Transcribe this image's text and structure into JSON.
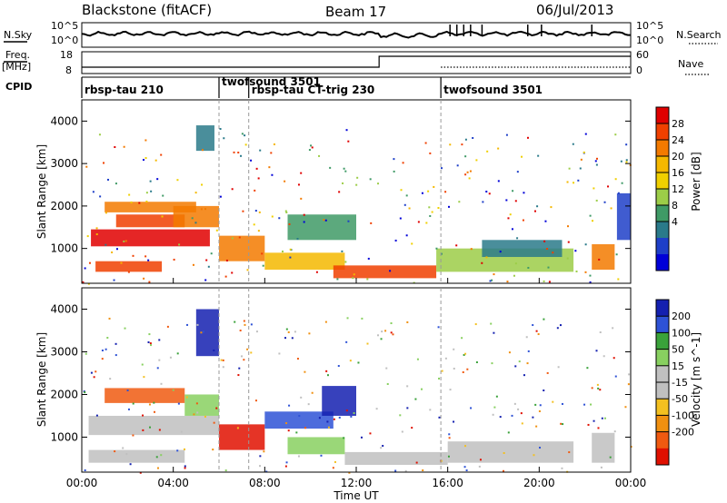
{
  "header": {
    "station": "Blackstone (fitACF)",
    "beam": "Beam 17",
    "date": "06/Jul/2013"
  },
  "top_panels": {
    "nsky": {
      "label": "N.Sky",
      "ticks": [
        "10^5",
        "10^0"
      ]
    },
    "nsearch": {
      "label": "N.Search",
      "ticks": [
        "10^5",
        "10^0"
      ]
    },
    "freq": {
      "label_line1": "Freq.",
      "label_line2": "[MHz]",
      "ticks": [
        "18",
        "8"
      ]
    },
    "nave": {
      "label": "Nave",
      "ticks": [
        "60",
        "0"
      ]
    },
    "cpid": {
      "label": "CPID"
    },
    "modes": [
      {
        "name": "rbsp-tau 210",
        "start": 0.0
      },
      {
        "name": "twofsound 3501",
        "start": 6.0
      },
      {
        "name": "rbsp-tau CT-trig 230",
        "start": 7.3
      },
      {
        "name": "twofsound 3501",
        "start": 15.7
      }
    ],
    "mode_boundaries": [
      6.0,
      7.3,
      15.7
    ]
  },
  "chart_data": {
    "type": "heatmap",
    "x_range_hours": [
      0,
      24
    ],
    "x_ticks": [
      "00:00",
      "04:00",
      "08:00",
      "12:00",
      "16:00",
      "20:00",
      "00:00"
    ],
    "x_tick_hours": [
      0,
      4,
      8,
      12,
      16,
      20,
      24
    ],
    "xlabel": "Time UT",
    "ylim_km": [
      180,
      4500
    ],
    "y_ticks": [
      1000,
      2000,
      3000,
      4000
    ],
    "ylabel": "Slant Range [km]",
    "power_panel": {
      "colorbar_label": "Power [dB]",
      "colorbar_ticks": [
        "28",
        "24",
        "20",
        "16",
        "12",
        "8",
        "4"
      ],
      "colorbar_colors": [
        "#e00000",
        "#f04000",
        "#f37a00",
        "#f5b800",
        "#f0d000",
        "#9ccd48",
        "#3f9a66",
        "#2a7a8a",
        "#1e3fc8",
        "#0000d8"
      ],
      "regions": [
        {
          "t": [
            0.4,
            5.6
          ],
          "r": [
            1050,
            1450
          ],
          "c": 0
        },
        {
          "t": [
            0.6,
            3.5
          ],
          "r": [
            450,
            700
          ],
          "c": 1
        },
        {
          "t": [
            1.0,
            5.0
          ],
          "r": [
            1850,
            2100
          ],
          "c": 2
        },
        {
          "t": [
            1.5,
            4.5
          ],
          "r": [
            1500,
            1800
          ],
          "c": 1
        },
        {
          "t": [
            4.0,
            6.0
          ],
          "r": [
            1500,
            2000
          ],
          "c": 2
        },
        {
          "t": [
            5.0,
            5.8
          ],
          "r": [
            3300,
            3900
          ],
          "c": 7
        },
        {
          "t": [
            6.0,
            8.0
          ],
          "r": [
            700,
            1300
          ],
          "c": 2
        },
        {
          "t": [
            8.0,
            11.5
          ],
          "r": [
            500,
            900
          ],
          "c": 3
        },
        {
          "t": [
            9.0,
            12.0
          ],
          "r": [
            1200,
            1800
          ],
          "c": 6
        },
        {
          "t": [
            11.0,
            15.5
          ],
          "r": [
            300,
            600
          ],
          "c": 1
        },
        {
          "t": [
            15.5,
            21.5
          ],
          "r": [
            450,
            1000
          ],
          "c": 5
        },
        {
          "t": [
            17.5,
            21.0
          ],
          "r": [
            800,
            1200
          ],
          "c": 7
        },
        {
          "t": [
            22.3,
            23.3
          ],
          "r": [
            500,
            1100
          ],
          "c": 2
        },
        {
          "t": [
            23.4,
            24.0
          ],
          "r": [
            1200,
            2300
          ],
          "c": 8
        }
      ]
    },
    "velocity_panel": {
      "colorbar_label": "Velocity [m s^-1]",
      "colorbar_ticks": [
        "200",
        "100",
        "50",
        "15",
        "-15",
        "-50",
        "-100",
        "-200"
      ],
      "colorbar_colors": [
        "#1420b0",
        "#2e52d6",
        "#3aa23a",
        "#88d060",
        "#c0c0c0",
        "#c0c0c0",
        "#f3c020",
        "#f09010",
        "#f05a10",
        "#e01000"
      ],
      "regions": [
        {
          "t": [
            0.3,
            6.0
          ],
          "r": [
            1050,
            1500
          ],
          "c": 4
        },
        {
          "t": [
            0.3,
            4.5
          ],
          "r": [
            400,
            700
          ],
          "c": 4
        },
        {
          "t": [
            1.0,
            4.5
          ],
          "r": [
            1800,
            2150
          ],
          "c": 8
        },
        {
          "t": [
            4.5,
            6.0
          ],
          "r": [
            1500,
            2000
          ],
          "c": 3
        },
        {
          "t": [
            5.0,
            6.0
          ],
          "r": [
            2900,
            4000
          ],
          "c": 0
        },
        {
          "t": [
            6.0,
            8.0
          ],
          "r": [
            700,
            1300
          ],
          "c": 9
        },
        {
          "t": [
            8.0,
            11.0
          ],
          "r": [
            1200,
            1600
          ],
          "c": 1
        },
        {
          "t": [
            10.5,
            12.0
          ],
          "r": [
            1500,
            2200
          ],
          "c": 0
        },
        {
          "t": [
            9.0,
            11.5
          ],
          "r": [
            600,
            1000
          ],
          "c": 3
        },
        {
          "t": [
            11.5,
            16.0
          ],
          "r": [
            350,
            650
          ],
          "c": 5
        },
        {
          "t": [
            16.0,
            21.5
          ],
          "r": [
            400,
            900
          ],
          "c": 4
        },
        {
          "t": [
            22.3,
            23.3
          ],
          "r": [
            400,
            1100
          ],
          "c": 4
        }
      ]
    }
  }
}
